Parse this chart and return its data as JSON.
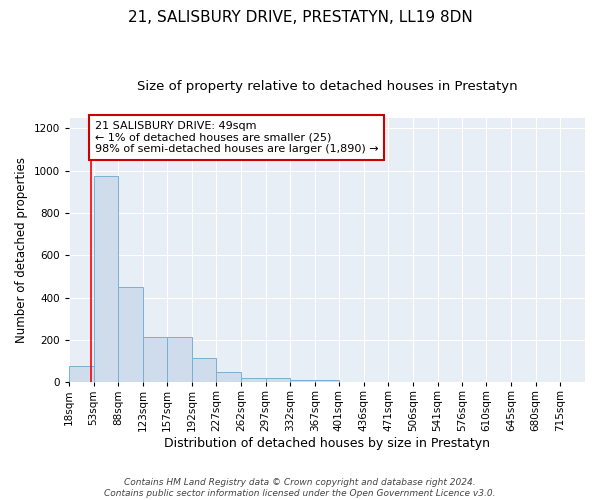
{
  "title": "21, SALISBURY DRIVE, PRESTATYN, LL19 8DN",
  "subtitle": "Size of property relative to detached houses in Prestatyn",
  "xlabel": "Distribution of detached houses by size in Prestatyn",
  "ylabel": "Number of detached properties",
  "bar_labels": [
    "18sqm",
    "53sqm",
    "88sqm",
    "123sqm",
    "157sqm",
    "192sqm",
    "227sqm",
    "262sqm",
    "297sqm",
    "332sqm",
    "367sqm",
    "401sqm",
    "436sqm",
    "471sqm",
    "506sqm",
    "541sqm",
    "576sqm",
    "610sqm",
    "645sqm",
    "680sqm",
    "715sqm"
  ],
  "bin_edges": [
    18,
    53,
    88,
    123,
    157,
    192,
    227,
    262,
    297,
    332,
    367,
    401,
    436,
    471,
    506,
    541,
    576,
    610,
    645,
    680,
    715,
    750
  ],
  "bar_heights": [
    75,
    975,
    450,
    215,
    215,
    115,
    50,
    20,
    20,
    10,
    10,
    0,
    0,
    0,
    0,
    0,
    0,
    0,
    0,
    0,
    0
  ],
  "bar_color": "#cfdceb",
  "bar_edge_color": "#7ab0d4",
  "background_color": "#e8eef6",
  "grid_color": "#ffffff",
  "red_line_x": 49,
  "annotation_text": "21 SALISBURY DRIVE: 49sqm\n← 1% of detached houses are smaller (25)\n98% of semi-detached houses are larger (1,890) →",
  "annotation_box_color": "#ffffff",
  "annotation_box_edge_color": "#cc0000",
  "ylim": [
    0,
    1250
  ],
  "yticks": [
    0,
    200,
    400,
    600,
    800,
    1000,
    1200
  ],
  "footer_text": "Contains HM Land Registry data © Crown copyright and database right 2024.\nContains public sector information licensed under the Open Government Licence v3.0.",
  "title_fontsize": 11,
  "subtitle_fontsize": 9.5,
  "xlabel_fontsize": 9,
  "ylabel_fontsize": 8.5,
  "tick_fontsize": 7.5,
  "annotation_fontsize": 8,
  "footer_fontsize": 6.5,
  "fig_bg": "#ffffff"
}
